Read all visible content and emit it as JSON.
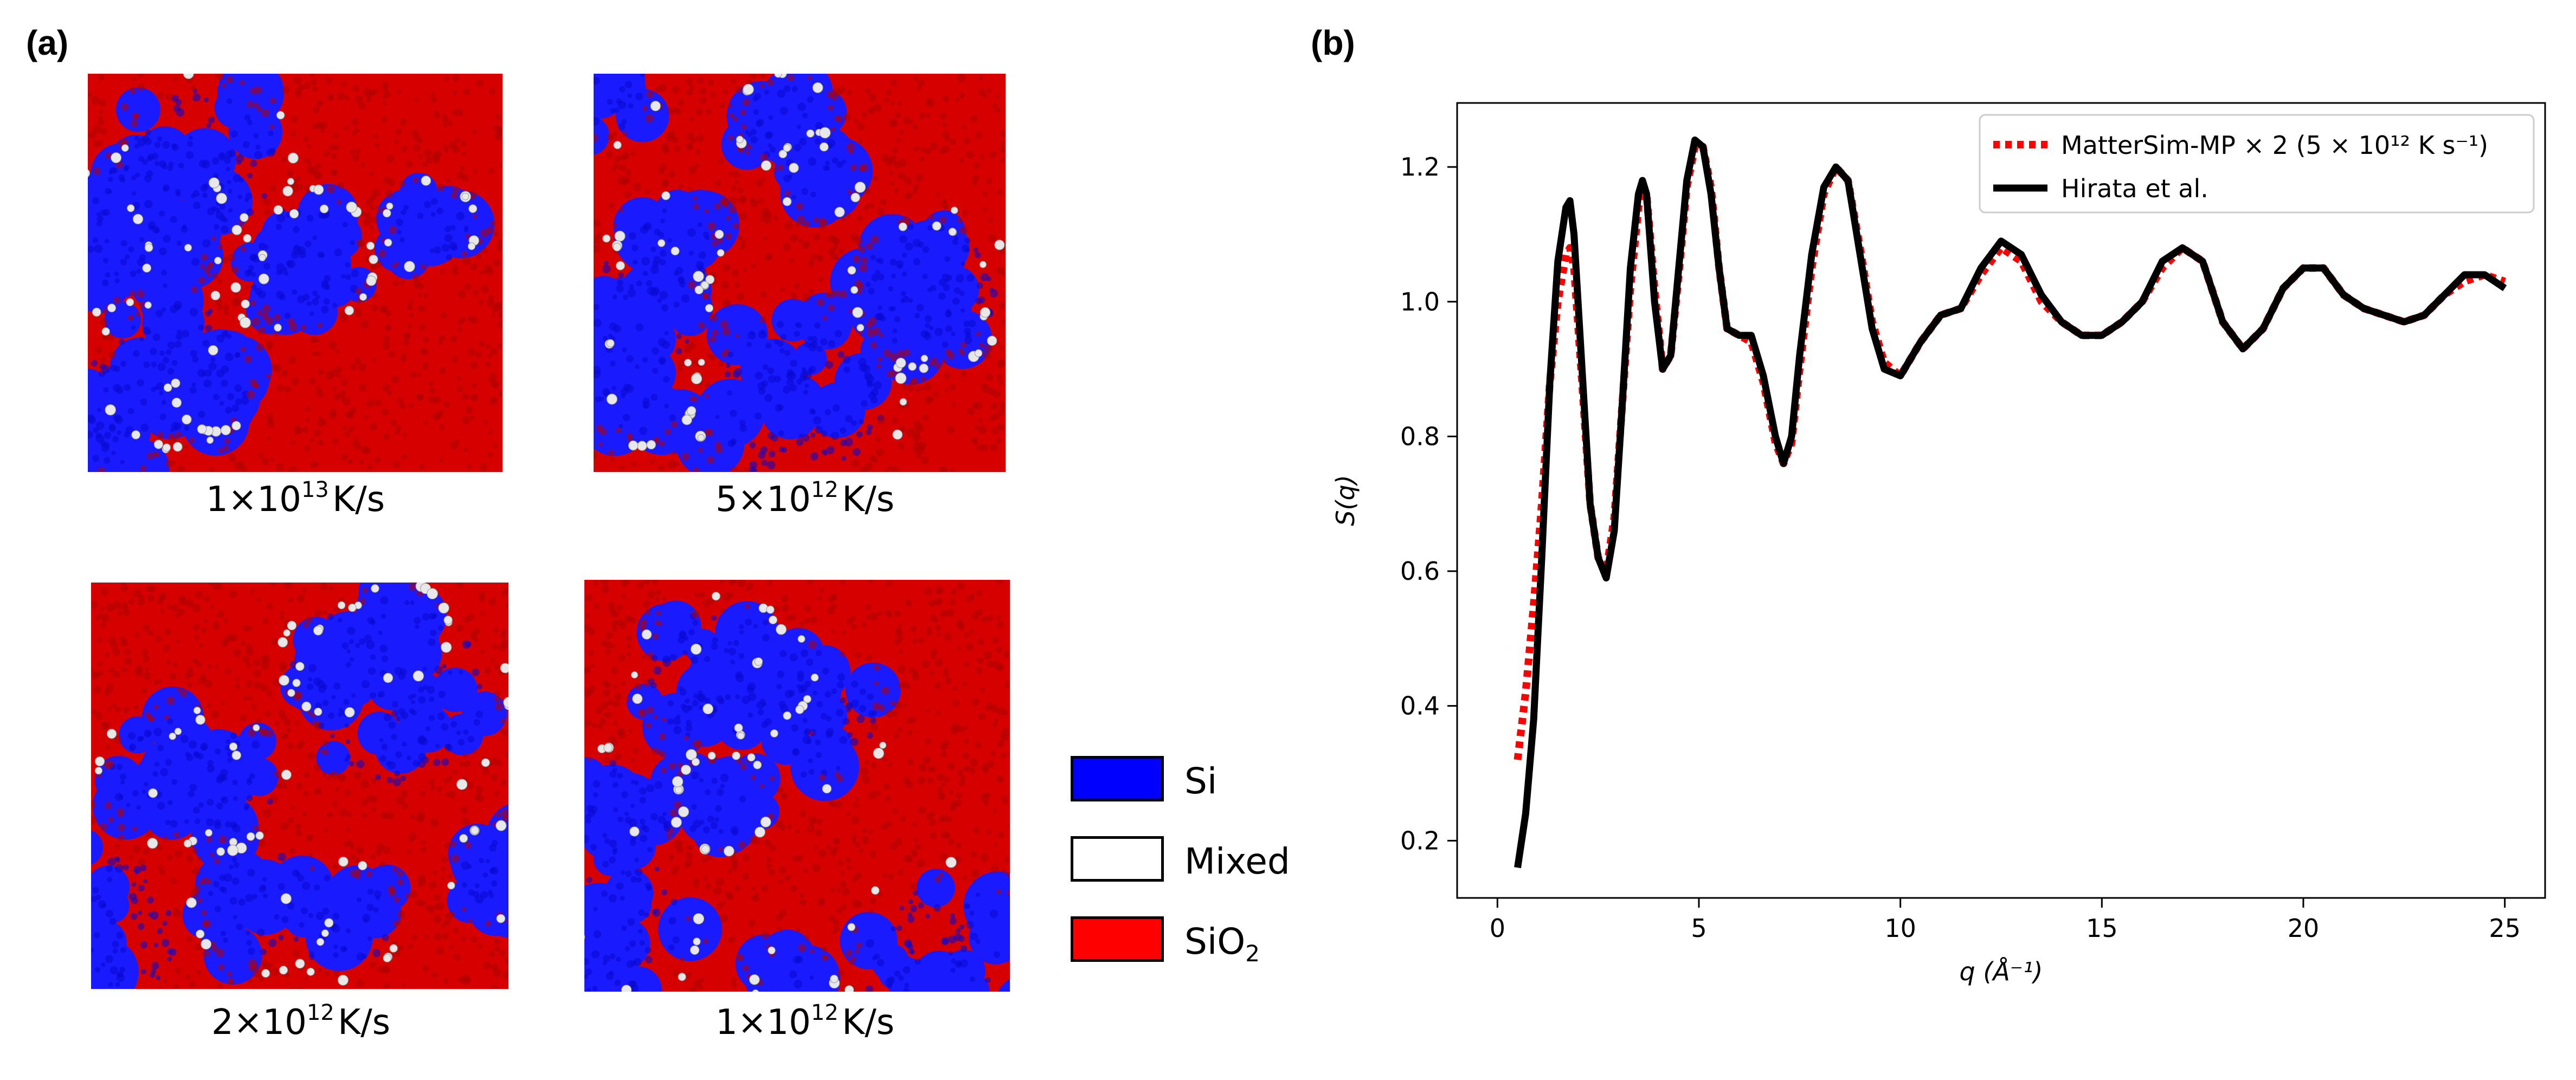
{
  "panel_a": {
    "label": "(a)",
    "images": [
      {
        "id": "1e13",
        "caption_base": "1×10",
        "caption_exp": "13",
        "caption_unit": "K/s"
      },
      {
        "id": "5e12",
        "caption_base": "5×10",
        "caption_exp": "12",
        "caption_unit": "K/s"
      },
      {
        "id": "2e12",
        "caption_base": "2×10",
        "caption_exp": "12",
        "caption_unit": "K/s"
      },
      {
        "id": "1e12",
        "caption_base": "1×10",
        "caption_exp": "12",
        "caption_unit": "K/s"
      }
    ],
    "legend": [
      {
        "label": "Si",
        "sub": "",
        "color": "#0000ff"
      },
      {
        "label": "Mixed",
        "sub": "",
        "color": "#ffffff"
      },
      {
        "label": "SiO",
        "sub": "2",
        "color": "#ff0000"
      }
    ],
    "colors": {
      "si": "#1a1aff",
      "sio2": "#e00000",
      "mixed": "#e8e8e8"
    }
  },
  "panel_b": {
    "label": "(b)"
  },
  "chart_data": {
    "type": "line",
    "xlabel": "q (Å⁻¹)",
    "ylabel": "S(q)",
    "xlim": [
      -1,
      26
    ],
    "ylim": [
      0.115,
      1.295
    ],
    "xticks": [
      0,
      5,
      10,
      15,
      20,
      25
    ],
    "yticks": [
      0.2,
      0.4,
      0.6,
      0.8,
      1.0,
      1.2
    ],
    "xtick_labels": [
      "0",
      "5",
      "10",
      "15",
      "20",
      "25"
    ],
    "ytick_labels": [
      "0.2",
      "0.4",
      "0.6",
      "0.8",
      "1.0",
      "1.2"
    ],
    "grid": false,
    "legend_position": "top-right",
    "series": [
      {
        "name": "MatterSim-MP × 2 (5 × 10¹² K s⁻¹)",
        "color": "#ff0000",
        "style": "dotted",
        "x": [
          0.5,
          0.7,
          0.9,
          1.1,
          1.3,
          1.5,
          1.7,
          1.8,
          1.9,
          2.1,
          2.3,
          2.5,
          2.7,
          2.9,
          3.1,
          3.3,
          3.5,
          3.6,
          3.7,
          3.9,
          4.1,
          4.3,
          4.5,
          4.7,
          4.9,
          5.1,
          5.3,
          5.5,
          5.7,
          6.0,
          6.3,
          6.6,
          6.9,
          7.1,
          7.3,
          7.5,
          7.8,
          8.1,
          8.4,
          8.7,
          9.0,
          9.3,
          9.6,
          10.0,
          10.5,
          11.0,
          11.5,
          12.0,
          12.5,
          13.0,
          13.5,
          14.0,
          14.5,
          15.0,
          15.5,
          16.0,
          16.5,
          17.0,
          17.5,
          18.0,
          18.5,
          19.0,
          19.5,
          20.0,
          20.5,
          21.0,
          21.5,
          22.0,
          22.5,
          23.0,
          23.5,
          24.0,
          24.5,
          25.0
        ],
        "y": [
          0.32,
          0.42,
          0.55,
          0.7,
          0.88,
          1.0,
          1.07,
          1.08,
          1.05,
          0.88,
          0.7,
          0.62,
          0.6,
          0.68,
          0.85,
          1.02,
          1.14,
          1.17,
          1.16,
          1.02,
          0.9,
          0.92,
          1.04,
          1.17,
          1.23,
          1.23,
          1.17,
          1.05,
          0.96,
          0.95,
          0.94,
          0.88,
          0.79,
          0.76,
          0.79,
          0.9,
          1.05,
          1.16,
          1.2,
          1.18,
          1.08,
          0.97,
          0.91,
          0.89,
          0.94,
          0.98,
          0.99,
          1.04,
          1.08,
          1.06,
          1.0,
          0.97,
          0.95,
          0.95,
          0.97,
          1.0,
          1.05,
          1.08,
          1.06,
          0.97,
          0.93,
          0.96,
          1.02,
          1.05,
          1.05,
          1.01,
          0.99,
          0.98,
          0.97,
          0.98,
          1.01,
          1.03,
          1.04,
          1.03
        ]
      },
      {
        "name": "Hirata et al.",
        "color": "#000000",
        "style": "solid",
        "x": [
          0.5,
          0.7,
          0.9,
          1.1,
          1.3,
          1.5,
          1.7,
          1.8,
          1.9,
          2.1,
          2.3,
          2.5,
          2.7,
          2.9,
          3.1,
          3.3,
          3.5,
          3.6,
          3.7,
          3.9,
          4.1,
          4.3,
          4.5,
          4.7,
          4.9,
          5.1,
          5.3,
          5.5,
          5.7,
          6.0,
          6.3,
          6.6,
          6.9,
          7.1,
          7.3,
          7.5,
          7.8,
          8.1,
          8.4,
          8.7,
          9.0,
          9.3,
          9.6,
          10.0,
          10.5,
          11.0,
          11.5,
          12.0,
          12.5,
          13.0,
          13.5,
          14.0,
          14.5,
          15.0,
          15.5,
          16.0,
          16.5,
          17.0,
          17.5,
          18.0,
          18.5,
          19.0,
          19.5,
          20.0,
          20.5,
          21.0,
          21.5,
          22.0,
          22.5,
          23.0,
          23.5,
          24.0,
          24.5,
          25.0
        ],
        "y": [
          0.16,
          0.24,
          0.38,
          0.62,
          0.88,
          1.06,
          1.14,
          1.15,
          1.1,
          0.9,
          0.7,
          0.62,
          0.59,
          0.66,
          0.85,
          1.05,
          1.16,
          1.18,
          1.16,
          1.0,
          0.9,
          0.92,
          1.05,
          1.18,
          1.24,
          1.23,
          1.16,
          1.05,
          0.96,
          0.95,
          0.95,
          0.89,
          0.8,
          0.76,
          0.8,
          0.92,
          1.07,
          1.17,
          1.2,
          1.18,
          1.07,
          0.96,
          0.9,
          0.89,
          0.94,
          0.98,
          0.99,
          1.05,
          1.09,
          1.07,
          1.01,
          0.97,
          0.95,
          0.95,
          0.97,
          1.0,
          1.06,
          1.08,
          1.06,
          0.97,
          0.93,
          0.96,
          1.02,
          1.05,
          1.05,
          1.01,
          0.99,
          0.98,
          0.97,
          0.98,
          1.01,
          1.04,
          1.04,
          1.02
        ]
      }
    ]
  }
}
